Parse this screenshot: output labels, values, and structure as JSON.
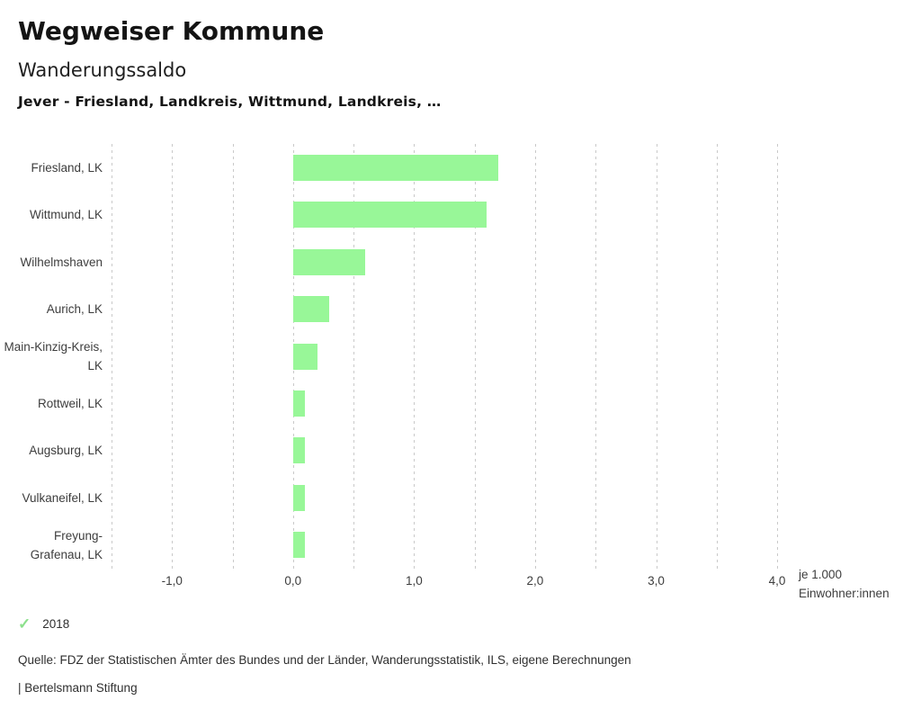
{
  "header": {
    "app_title": "Wegweiser Kommune",
    "chart_title": "Wanderungssaldo",
    "subtitle": "Jever - Friesland, Landkreis, Wittmund, Landkreis, …"
  },
  "chart_data": {
    "type": "bar",
    "orientation": "horizontal",
    "title": "Wanderungssaldo",
    "categories": [
      "Friesland, LK",
      "Wittmund, LK",
      "Wilhelmshaven",
      "Aurich, LK",
      "Main-Kinzig-Kreis, LK",
      "Rottweil, LK",
      "Augsburg, LK",
      "Vulkaneifel, LK",
      "Freyung-Grafenau, LK"
    ],
    "series": [
      {
        "name": "2018",
        "values": [
          1.7,
          1.6,
          0.6,
          0.3,
          0.2,
          0.1,
          0.1,
          0.1,
          0.1
        ]
      }
    ],
    "xlim": [
      -1.5,
      4.0
    ],
    "grid_step": 0.5,
    "grid": true,
    "x_ticks": [
      -1.0,
      0.0,
      1.0,
      2.0,
      3.0,
      4.0
    ],
    "x_tick_labels": [
      "-1,0",
      "0,0",
      "1,0",
      "2,0",
      "3,0",
      "4,0"
    ],
    "x_axis_note": [
      "je 1.000",
      "Einwohner:innen"
    ],
    "legend_position": "bottom-left",
    "bar_color": "#98f798"
  },
  "legend": {
    "check_icon": "✓",
    "year": "2018",
    "check_color": "#8ce08c"
  },
  "footer": {
    "source": "Quelle: FDZ der Statistischen Ämter des Bundes und der Länder, Wanderungsstatistik, ILS, eigene Berechnungen",
    "brand": "| Bertelsmann Stiftung"
  },
  "colors": {
    "bar": "#98f798",
    "grid": "#c9c9c9",
    "text": "#3d3d3d"
  }
}
